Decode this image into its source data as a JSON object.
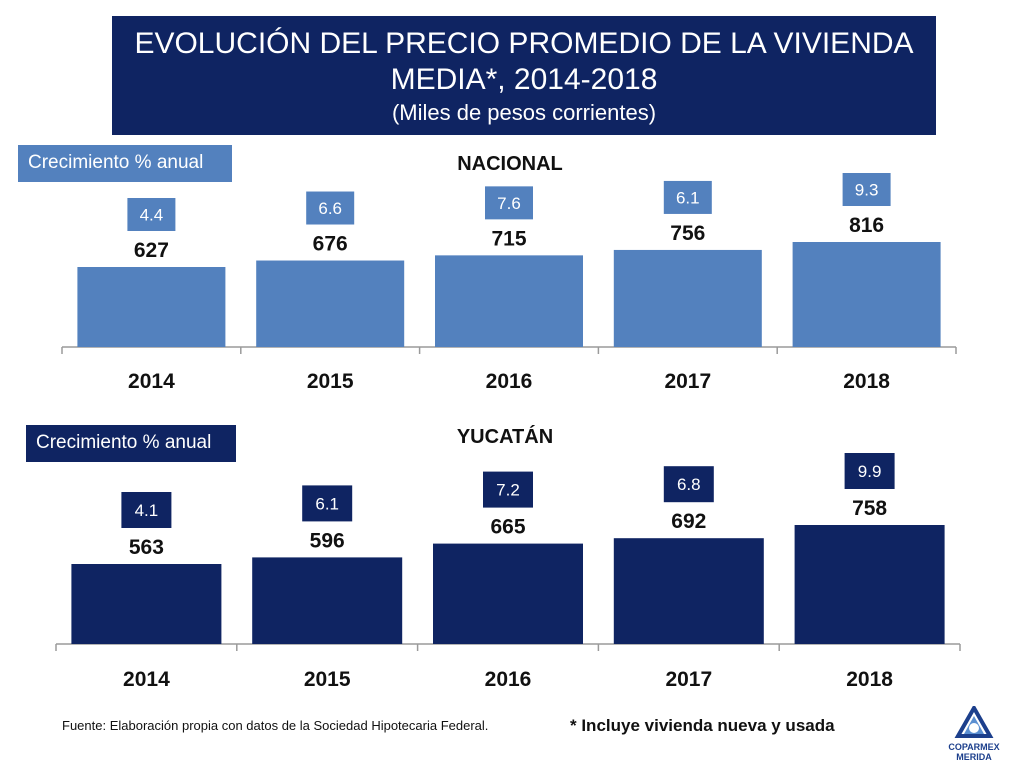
{
  "header": {
    "title_line1": "EVOLUCIÓN DEL PRECIO PROMEDIO DE LA VIVIENDA",
    "title_line2": "MEDIA*, 2014-2018",
    "subtitle": "(Miles de pesos corrientes)"
  },
  "colors": {
    "nacional_bar": "#5381be",
    "yucatan_bar": "#0f2462",
    "title_bg": "#0f2462"
  },
  "chart_data": [
    {
      "type": "bar",
      "title": "NACIONAL",
      "panel_label": "Crecimiento % anual",
      "categories": [
        "2014",
        "2015",
        "2016",
        "2017",
        "2018"
      ],
      "values": [
        627,
        676,
        715,
        756,
        816
      ],
      "growth": [
        "4.4",
        "6.6",
        "7.6",
        "6.1",
        "9.3"
      ],
      "value_labels": [
        "627",
        "676",
        "715",
        "756",
        "816"
      ]
    },
    {
      "type": "bar",
      "title": "YUCATÁN",
      "panel_label": "Crecimiento % anual",
      "categories": [
        "2014",
        "2015",
        "2016",
        "2017",
        "2018"
      ],
      "values": [
        563,
        596,
        665,
        692,
        758
      ],
      "growth": [
        "4.1",
        "6.1",
        "7.2",
        "6.8",
        "9.9"
      ],
      "value_labels": [
        "563",
        "596",
        "665",
        "692",
        "758"
      ]
    }
  ],
  "footer": {
    "source": "Fuente: Elaboración propia con datos de la Sociedad Hipotecaria Federal.",
    "note": "* Incluye vivienda nueva y usada",
    "logo_line1": "COPARMEX",
    "logo_line2": "MERIDA"
  }
}
